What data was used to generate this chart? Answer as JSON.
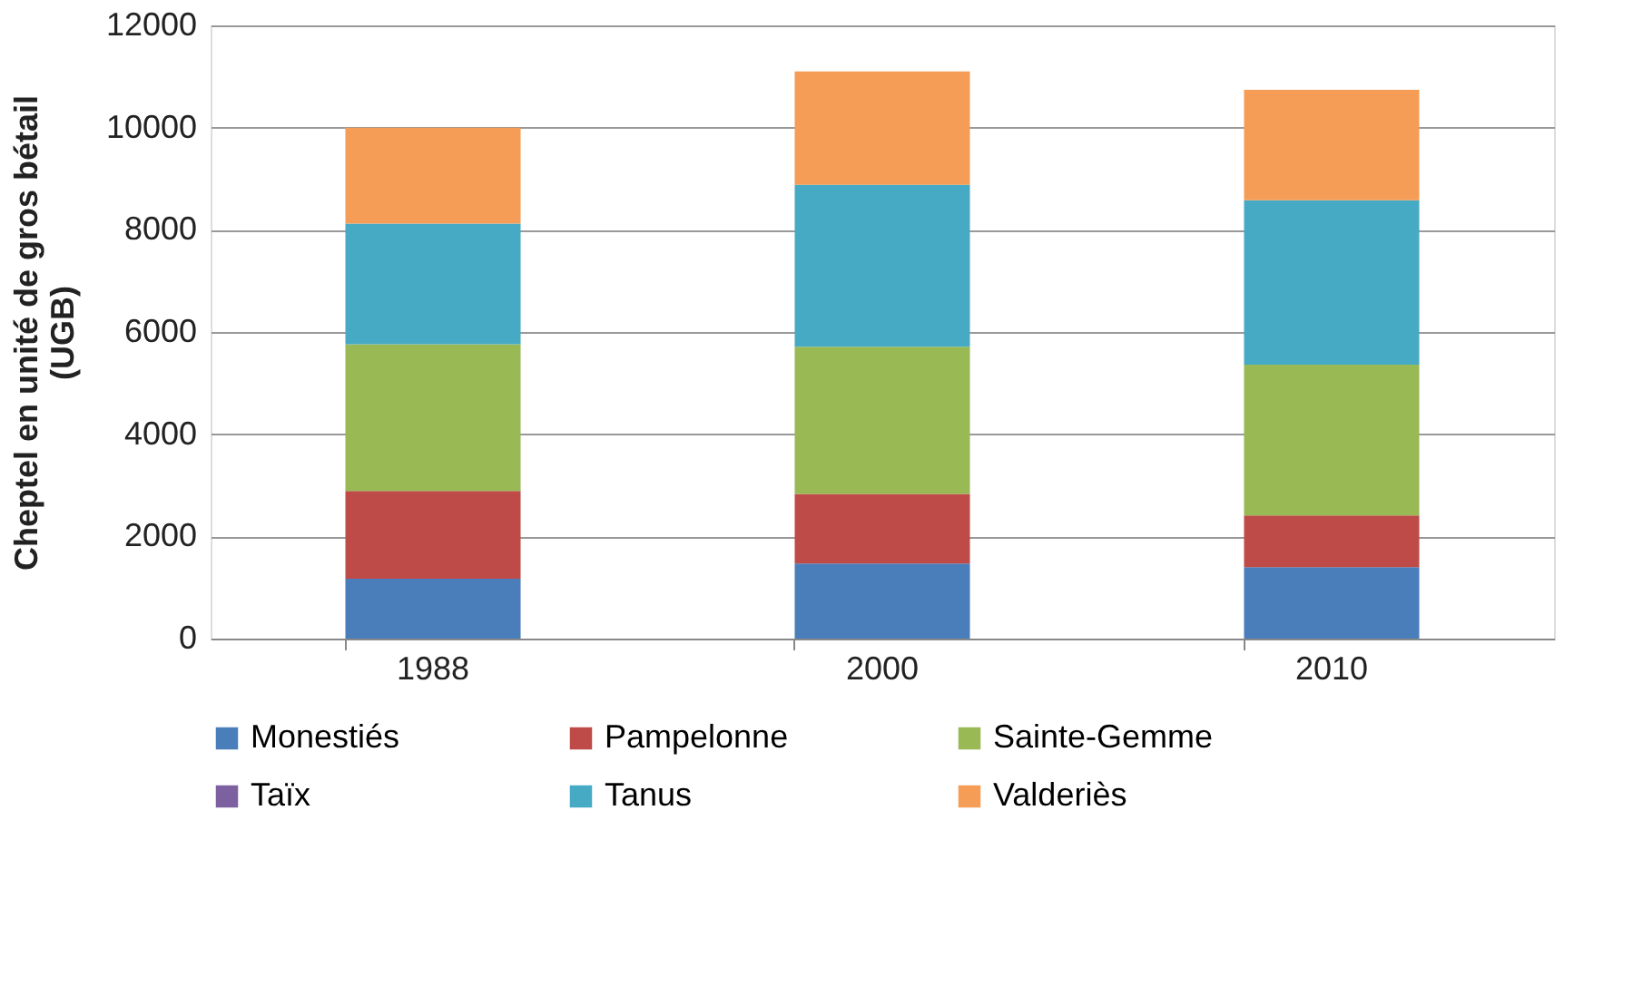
{
  "chart_data": {
    "type": "bar",
    "stacked": true,
    "ylabel": "Cheptel en unité de gros bétail (UGB)",
    "categories": [
      "1988",
      "2000",
      "2010"
    ],
    "series": [
      {
        "name": "Monestiés",
        "color": "#4a7ebb",
        "values": [
          1170,
          1470,
          1400
        ]
      },
      {
        "name": "Pampelonne",
        "color": "#be4b48",
        "values": [
          1720,
          1360,
          1010
        ]
      },
      {
        "name": "Sainte-Gemme",
        "color": "#98b954",
        "values": [
          2870,
          2880,
          2950
        ]
      },
      {
        "name": "Taïx",
        "color": "#7d60a0",
        "values": [
          0,
          0,
          0
        ]
      },
      {
        "name": "Tanus",
        "color": "#46aac5",
        "values": [
          2360,
          3170,
          3220
        ]
      },
      {
        "name": "Valderiès",
        "color": "#f59d56",
        "values": [
          1880,
          2220,
          2160
        ]
      }
    ],
    "ylim": [
      0,
      12000
    ],
    "yticks": [
      0,
      2000,
      4000,
      6000,
      8000,
      10000,
      12000
    ],
    "grid": "y",
    "legend": "bottom"
  }
}
